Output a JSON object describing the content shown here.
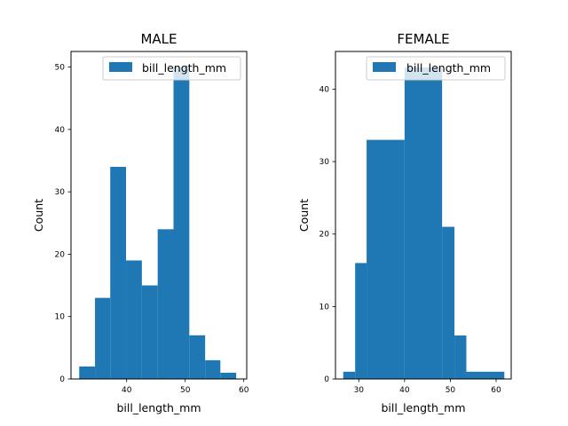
{
  "chart_data": [
    {
      "type": "bar",
      "title": "MALE",
      "xlabel": "bill_length_mm",
      "ylabel": "Count",
      "legend": [
        "bill_length_mm"
      ],
      "legend_position": "top-right",
      "xlim": [
        30.5,
        60.5
      ],
      "ylim": [
        0,
        52.5
      ],
      "xticks": [
        40,
        50,
        60
      ],
      "yticks": [
        0,
        10,
        20,
        30,
        40,
        50
      ],
      "color": "#1f77b4",
      "grid": false,
      "bins": [
        {
          "x0": 31.9,
          "x1": 34.6,
          "count": 2
        },
        {
          "x0": 34.6,
          "x1": 37.2,
          "count": 13
        },
        {
          "x0": 37.2,
          "x1": 39.9,
          "count": 34
        },
        {
          "x0": 39.9,
          "x1": 42.6,
          "count": 19
        },
        {
          "x0": 42.6,
          "x1": 45.3,
          "count": 15
        },
        {
          "x0": 45.3,
          "x1": 48.0,
          "count": 24
        },
        {
          "x0": 48.0,
          "x1": 50.7,
          "count": 50
        },
        {
          "x0": 50.7,
          "x1": 53.4,
          "count": 7
        },
        {
          "x0": 53.4,
          "x1": 56.0,
          "count": 3
        },
        {
          "x0": 56.0,
          "x1": 58.7,
          "count": 1
        }
      ]
    },
    {
      "type": "bar",
      "title": "FEMALE",
      "xlabel": "bill_length_mm",
      "ylabel": "Count",
      "legend": [
        "bill_length_mm"
      ],
      "legend_position": "top-right",
      "xlim": [
        24.9,
        63.3
      ],
      "ylim": [
        0,
        45.2
      ],
      "xticks": [
        30,
        40,
        50,
        60
      ],
      "yticks": [
        0,
        10,
        20,
        30,
        40
      ],
      "color": "#1f77b4",
      "grid": false,
      "bins": [
        {
          "x0": 26.6,
          "x1": 29.2,
          "count": 1
        },
        {
          "x0": 29.2,
          "x1": 31.7,
          "count": 16
        },
        {
          "x0": 31.7,
          "x1": 40.0,
          "count": 33
        },
        {
          "x0": 40.0,
          "x1": 48.2,
          "count": 43
        },
        {
          "x0": 48.2,
          "x1": 50.9,
          "count": 21
        },
        {
          "x0": 50.9,
          "x1": 53.5,
          "count": 6
        },
        {
          "x0": 53.5,
          "x1": 61.8,
          "count": 1
        }
      ]
    }
  ]
}
